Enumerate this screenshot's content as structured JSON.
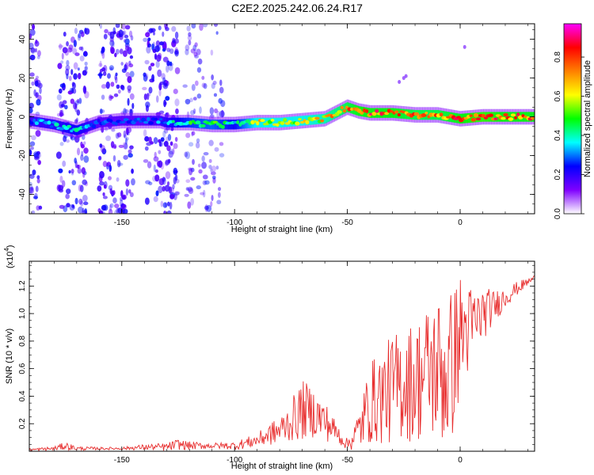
{
  "title": "C2E2.2025.242.06.24.R17",
  "chart_data": [
    {
      "type": "heatmap",
      "xlabel": "Height of straight line (km)",
      "ylabel": "Frequency (Hz)",
      "xlim": [
        -191,
        33
      ],
      "ylim": [
        -50,
        48
      ],
      "x_ticks": [
        -150,
        -100,
        -50,
        0
      ],
      "y_ticks": [
        -40,
        -20,
        0,
        20,
        40
      ],
      "colorbar": {
        "label": "Normalized spectral amplitude",
        "range": [
          0,
          0.97
        ],
        "ticks": [
          0.0,
          0.2,
          0.4,
          0.6,
          0.8
        ],
        "colormap": [
          "#ffffff",
          "#7f00ff",
          "#0000ff",
          "#00ffff",
          "#00ff00",
          "#ffff00",
          "#ff8000",
          "#ff0000",
          "#ff00ff"
        ]
      },
      "ridge": {
        "x": [
          -191,
          -180,
          -170,
          -160,
          -150,
          -140,
          -133,
          -130,
          -120,
          -110,
          -100,
          -90,
          -80,
          -70,
          -60,
          -55,
          -50,
          -45,
          -40,
          -30,
          -20,
          -10,
          0,
          10,
          20,
          33
        ],
        "y": [
          -2,
          -4,
          -7,
          -3,
          -2,
          -2,
          -2,
          -3,
          -3,
          -4,
          -4,
          -3,
          -3,
          -2,
          -1,
          2,
          5,
          3,
          2,
          2,
          1,
          1,
          -1,
          0,
          0,
          0
        ],
        "peak_amplitude": [
          0.35,
          0.4,
          0.45,
          0.3,
          0.3,
          0.3,
          0.35,
          0.4,
          0.5,
          0.55,
          0.45,
          0.7,
          0.7,
          0.7,
          0.75,
          0.8,
          0.85,
          0.9,
          0.9,
          0.9,
          0.85,
          0.85,
          0.9,
          0.95,
          0.9,
          0.9
        ]
      },
      "scatter_noise": {
        "description_level": "dense low-amplitude points spread over full frequency range",
        "dense_x_ranges": [
          [
            -191,
            -186
          ],
          [
            -178,
            -165
          ],
          [
            -160,
            -145
          ],
          [
            -140,
            -125
          ]
        ],
        "sparse_x_ranges": [
          [
            -122,
            -105
          ]
        ],
        "isolated_points": [
          {
            "x": 2,
            "y": 36
          },
          {
            "x": -27,
            "y": 18
          },
          {
            "x": -25,
            "y": 20
          },
          {
            "x": -24,
            "y": 21
          }
        ]
      }
    },
    {
      "type": "line",
      "xlabel": "Height of straight line (km)",
      "ylabel": "SNR (10 * v/v)",
      "y_multiplier_label": "(x10",
      "y_multiplier_exp": "4",
      "xlim": [
        -191,
        33
      ],
      "ylim": [
        0,
        1.38
      ],
      "x_ticks": [
        -150,
        -100,
        -50,
        0
      ],
      "y_ticks": [
        0.2,
        0.4,
        0.6,
        0.8,
        1.0,
        1.2
      ],
      "series": [
        {
          "color": "#e83030",
          "x": [
            -191,
            -180,
            -175,
            -170,
            -160,
            -150,
            -140,
            -130,
            -125,
            -120,
            -110,
            -100,
            -95,
            -90,
            -85,
            -80,
            -75,
            -70,
            -65,
            -60,
            -55,
            -50,
            -45,
            -40,
            -35,
            -30,
            -25,
            -20,
            -15,
            -10,
            -5,
            0,
            5,
            10,
            15,
            20,
            25,
            30,
            33
          ],
          "base": [
            0.01,
            0.02,
            0.04,
            0.02,
            0.02,
            0.02,
            0.03,
            0.03,
            0.05,
            0.04,
            0.04,
            0.04,
            0.06,
            0.08,
            0.12,
            0.15,
            0.22,
            0.3,
            0.28,
            0.22,
            0.14,
            0.05,
            0.15,
            0.35,
            0.4,
            0.45,
            0.5,
            0.5,
            0.58,
            0.6,
            0.55,
            0.85,
            0.9,
            1.0,
            1.05,
            1.12,
            1.18,
            1.23,
            1.26
          ],
          "amplitude": [
            0.01,
            0.015,
            0.03,
            0.015,
            0.01,
            0.01,
            0.02,
            0.03,
            0.04,
            0.03,
            0.02,
            0.03,
            0.04,
            0.05,
            0.08,
            0.1,
            0.15,
            0.22,
            0.18,
            0.15,
            0.08,
            0.04,
            0.15,
            0.3,
            0.35,
            0.4,
            0.42,
            0.45,
            0.48,
            0.55,
            0.6,
            0.45,
            0.3,
            0.2,
            0.12,
            0.08,
            0.05,
            0.03,
            0.02
          ]
        }
      ]
    }
  ]
}
